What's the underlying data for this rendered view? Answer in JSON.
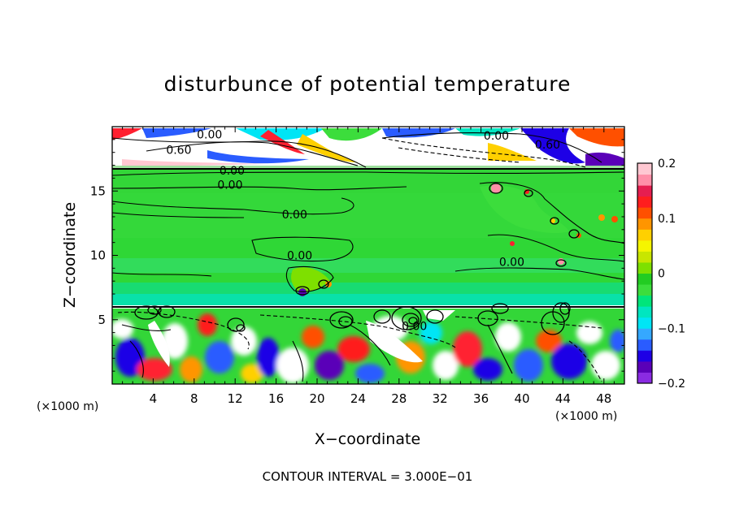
{
  "chart_data": {
    "type": "heatmap",
    "title": "disturbunce of potential temperature",
    "xlabel": "X−coordinate",
    "ylabel": "Z−coordinate",
    "x_unit_left": "(×1000 m)",
    "x_unit_right": "(×1000 m)",
    "x_ticks": [
      {
        "value": 4,
        "label": "4"
      },
      {
        "value": 8,
        "label": "8"
      },
      {
        "value": 12,
        "label": "12"
      },
      {
        "value": 16,
        "label": "16"
      },
      {
        "value": 20,
        "label": "20"
      },
      {
        "value": 24,
        "label": "24"
      },
      {
        "value": 28,
        "label": "28"
      },
      {
        "value": 32,
        "label": "32"
      },
      {
        "value": 36,
        "label": "36"
      },
      {
        "value": 40,
        "label": "40"
      },
      {
        "value": 44,
        "label": "44"
      },
      {
        "value": 48,
        "label": "48"
      }
    ],
    "y_ticks": [
      {
        "value": 5,
        "label": "5"
      },
      {
        "value": 10,
        "label": "10"
      },
      {
        "value": 15,
        "label": "15"
      }
    ],
    "xlim": [
      0,
      50
    ],
    "ylim": [
      0,
      20
    ],
    "colorbar": {
      "range": [
        -0.2,
        0.2
      ],
      "ticks": [
        {
          "value": 0.2,
          "label": "0.2"
        },
        {
          "value": 0.1,
          "label": "0.1"
        },
        {
          "value": 0,
          "label": "0"
        },
        {
          "value": -0.1,
          "label": "−0.1"
        },
        {
          "value": -0.2,
          "label": "−0.2"
        }
      ],
      "colors": [
        "#8a2be2",
        "#5a00b8",
        "#1e00e6",
        "#2a5cff",
        "#35a8ff",
        "#00e5f5",
        "#00e6c0",
        "#00e57a",
        "#3cdd3c",
        "#22cc22",
        "#7ee000",
        "#c8e600",
        "#f5f500",
        "#ffd000",
        "#ff9500",
        "#ff5000",
        "#ff1e1e",
        "#e61e50",
        "#ff8fa8",
        "#ffc8d2"
      ]
    },
    "contour_labels": [
      {
        "text": "0.00",
        "x": 9.5,
        "z": 19.4
      },
      {
        "text": "0.60",
        "x": 6.5,
        "z": 18.2
      },
      {
        "text": "0.00",
        "x": 11.7,
        "z": 16.6
      },
      {
        "text": "0.00",
        "x": 11.5,
        "z": 15.5
      },
      {
        "text": "0.00",
        "x": 17.8,
        "z": 13.2
      },
      {
        "text": "0.00",
        "x": 18.3,
        "z": 10.0
      },
      {
        "text": "0.00",
        "x": 37.5,
        "z": 19.3
      },
      {
        "text": "0.60",
        "x": 42.5,
        "z": 18.6
      },
      {
        "text": "0.00",
        "x": 39.0,
        "z": 9.5
      },
      {
        "text": "0.00",
        "x": 29.5,
        "z": 4.5
      }
    ],
    "footer": "CONTOUR INTERVAL = 3.000E−01"
  }
}
